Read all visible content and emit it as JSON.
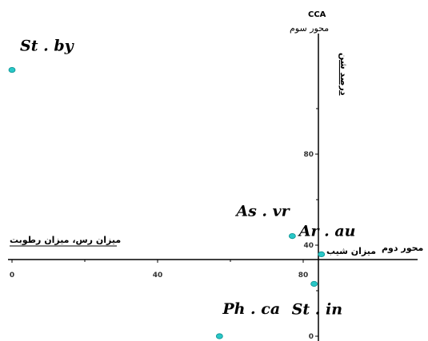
{
  "chart_data": {
    "type": "scatter",
    "title": "",
    "axis_top_label": "CCA",
    "axis_top_sublabel": "محور سوم",
    "axis_right_label": "محور دوم",
    "vector_vertical_label": "درصد شن",
    "vector_horizontal_left_label": "میزان رس، میزان رطوبت",
    "vector_horizontal_right_label": "میزان شیب",
    "x_ticks": [
      "0",
      "40",
      "80"
    ],
    "y_ticks": [
      "0",
      "40",
      "80"
    ],
    "grid": false,
    "points": [
      {
        "label": "St . by",
        "x": 0,
        "y": 117
      },
      {
        "label": "As . vr",
        "x": 77,
        "y": 44
      },
      {
        "label": "Ar . au",
        "x": 85,
        "y": 36
      },
      {
        "label": "St . in",
        "x": 83,
        "y": 23
      },
      {
        "label": "Ph . ca",
        "x": 57,
        "y": 0
      }
    ],
    "point_color": "#29c7c7"
  }
}
